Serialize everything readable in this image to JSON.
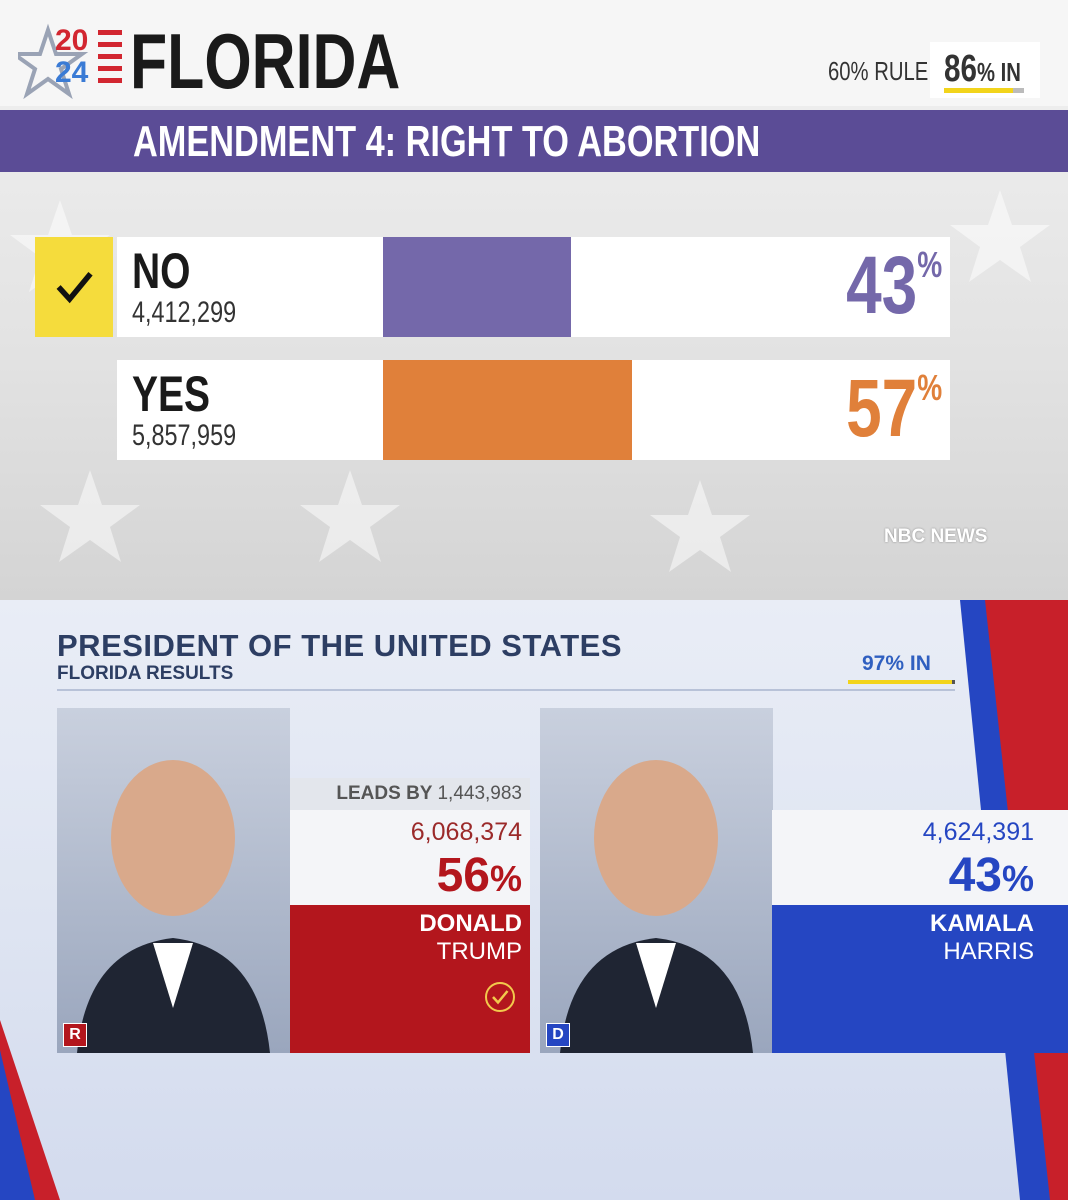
{
  "header": {
    "year_top": "20",
    "year_bottom": "24",
    "state": "FLORIDA",
    "rule": "60% RULE",
    "reporting": {
      "value": 86,
      "unit": "% IN"
    }
  },
  "amendment": {
    "title": "AMENDMENT 4: RIGHT TO ABORTION",
    "options": [
      {
        "name": "NO",
        "votes": "4,412,299",
        "pct": 43,
        "unit": "%",
        "color": "#7468aa",
        "winner": true
      },
      {
        "name": "YES",
        "votes": "5,857,959",
        "pct": 57,
        "unit": "%",
        "color": "#e0803a",
        "winner": false
      }
    ],
    "source": "NBC NEWS"
  },
  "president": {
    "title": "PRESIDENT OF THE UNITED STATES",
    "subtitle": "FLORIDA RESULTS",
    "reporting": {
      "value": 97,
      "unit": "% IN"
    },
    "lead_label": "LEADS BY",
    "lead": "1,443,983",
    "candidates": [
      {
        "first": "DONALD",
        "last": "TRUMP",
        "party": "R",
        "votes": "6,068,374",
        "pct": 56,
        "unit": "%",
        "color": "#b3161d",
        "winner": true
      },
      {
        "first": "KAMALA",
        "last": "HARRIS",
        "party": "D",
        "votes": "4,624,391",
        "pct": 43,
        "unit": "%",
        "color": "#2546c2",
        "winner": false
      }
    ]
  }
}
